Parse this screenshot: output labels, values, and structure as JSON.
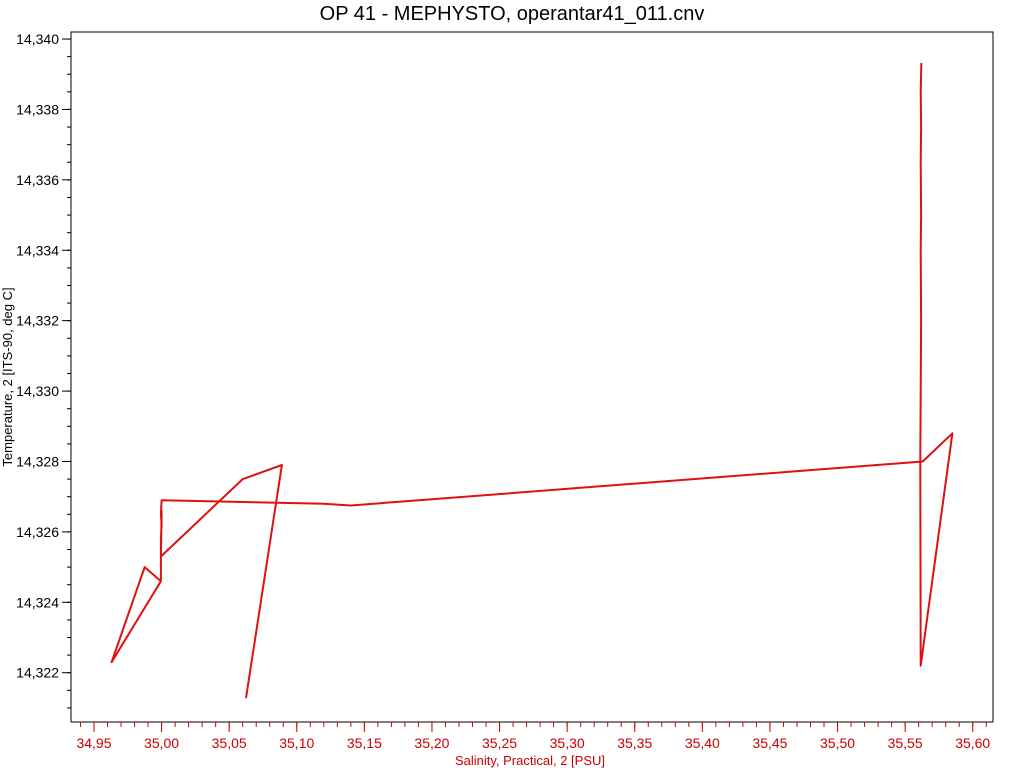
{
  "chart_data": {
    "type": "line",
    "title": "OP 41 - MEPHYSTO, operantar41_011.cnv",
    "xlabel": "Salinity, Practical, 2 [PSU]",
    "ylabel": "Temperature, 2 [ITS-90, deg C]",
    "xlim": [
      34.933,
      35.615
    ],
    "ylim": [
      14.3206,
      14.3402
    ],
    "x_ticks": [
      34.95,
      35.0,
      35.05,
      35.1,
      35.15,
      35.2,
      35.25,
      35.3,
      35.35,
      35.4,
      35.45,
      35.5,
      35.55,
      35.6
    ],
    "x_tick_labels": [
      "34,95",
      "35,00",
      "35,05",
      "35,10",
      "35,15",
      "35,20",
      "35,25",
      "35,30",
      "35,35",
      "35,40",
      "35,45",
      "35,50",
      "35,55",
      "35,60"
    ],
    "x_minor_step": 0.01,
    "y_ticks": [
      14.322,
      14.324,
      14.326,
      14.328,
      14.33,
      14.332,
      14.334,
      14.336,
      14.338,
      14.34
    ],
    "y_tick_labels": [
      "14,322",
      "14,324",
      "14,326",
      "14,328",
      "14,330",
      "14,332",
      "14,334",
      "14,336",
      "14,338",
      "14,340"
    ],
    "y_minor_step": 0.0005,
    "grid": false,
    "legend": "none",
    "colors": {
      "series": "#dd1111",
      "x_axis": "#cc0000",
      "y_axis": "#000000",
      "frame": "#000000",
      "title": "#000000"
    },
    "series": [
      {
        "x": [
          35.562,
          35.5615,
          35.5618,
          35.5615,
          35.5618,
          35.5615,
          35.5618,
          35.5615,
          35.5612,
          35.5615,
          35.585,
          35.563,
          35.14,
          35.12,
          35.0,
          34.9995,
          35.0,
          34.9995,
          34.9995,
          34.9875,
          34.963,
          34.9995,
          34.9995,
          35.0,
          35.0,
          34.9995,
          35.06,
          35.089,
          35.0625
        ],
        "y": [
          14.3393,
          14.3385,
          14.3375,
          14.3365,
          14.335,
          14.334,
          14.332,
          14.33,
          14.328,
          14.3222,
          14.3288,
          14.328,
          14.32675,
          14.3268,
          14.3269,
          14.3265,
          14.3262,
          14.3258,
          14.3246,
          14.325,
          14.3223,
          14.3246,
          14.3258,
          14.3262,
          14.3266,
          14.3253,
          14.3275,
          14.3279,
          14.3213
        ]
      }
    ]
  }
}
